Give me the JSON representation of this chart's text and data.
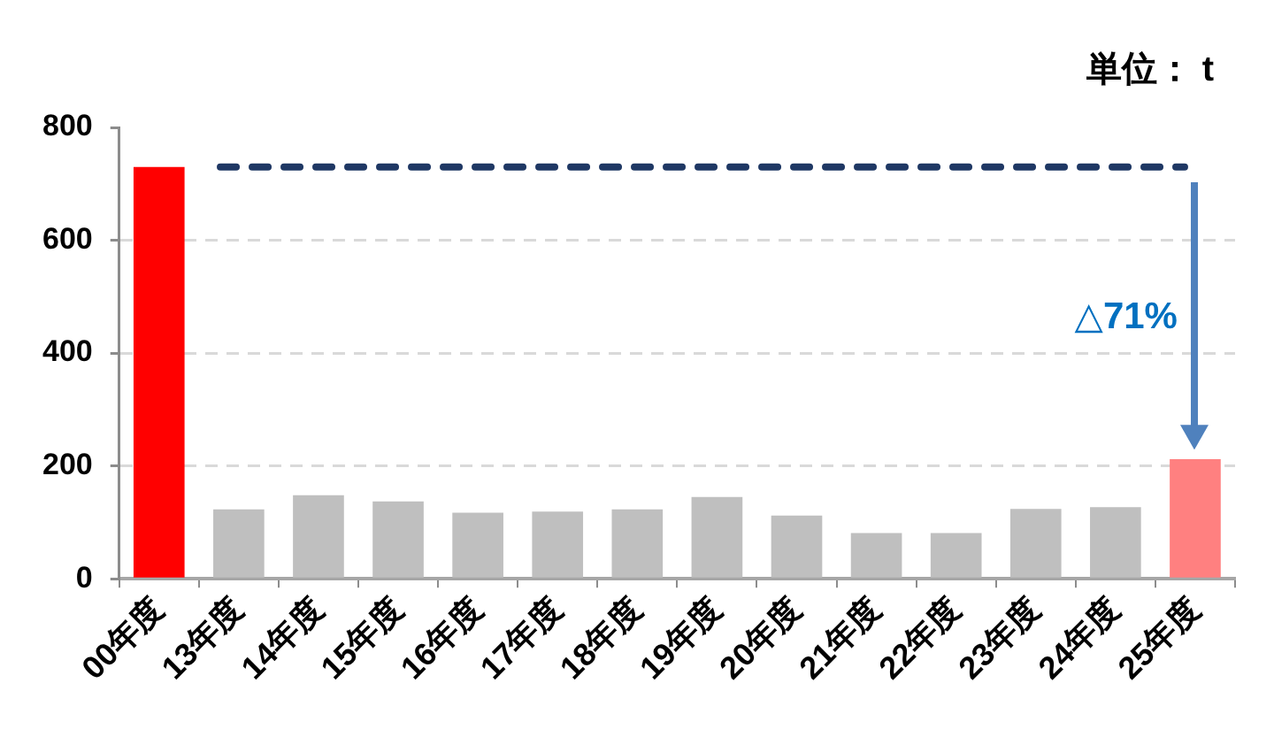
{
  "chart_data": {
    "type": "bar",
    "ylabel": "単位： t",
    "categories": [
      "00年度",
      "13年度",
      "14年度",
      "15年度",
      "16年度",
      "17年度",
      "18年度",
      "19年度",
      "20年度",
      "21年度",
      "22年度",
      "23年度",
      "24年度",
      "25年度"
    ],
    "values": [
      730,
      123,
      148,
      137,
      117,
      119,
      123,
      145,
      112,
      81,
      81,
      124,
      127,
      212
    ],
    "colors": [
      "#ff0000",
      "#bfbfbf",
      "#bfbfbf",
      "#bfbfbf",
      "#bfbfbf",
      "#bfbfbf",
      "#bfbfbf",
      "#bfbfbf",
      "#bfbfbf",
      "#bfbfbf",
      "#bfbfbf",
      "#bfbfbf",
      "#bfbfbf",
      "#ff8080"
    ],
    "ylim": [
      0,
      800
    ],
    "yticks": [
      0,
      200,
      400,
      600,
      800
    ],
    "grid": "y",
    "ref_lines": [
      {
        "axis": "y",
        "value": 730,
        "color": "#1f3864",
        "line_style": "dashed"
      }
    ],
    "annotations": [
      "△71%"
    ]
  }
}
